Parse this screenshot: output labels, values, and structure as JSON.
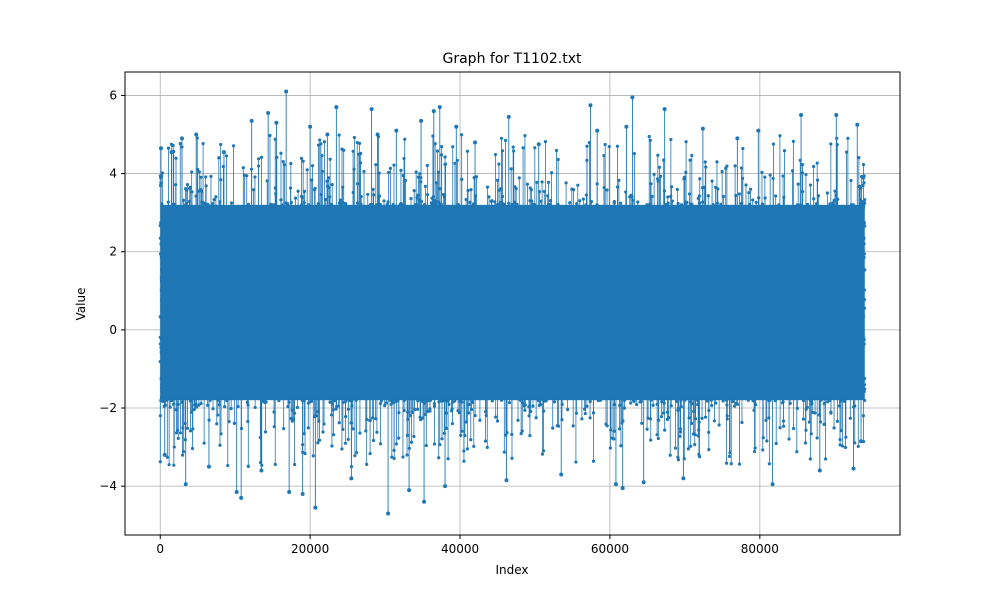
{
  "chart_data": {
    "type": "line",
    "title": "Graph for T1102.txt",
    "xlabel": "Index",
    "ylabel": "Value",
    "xlim": [
      -4700,
      98700
    ],
    "ylim": [
      -5.25,
      6.6
    ],
    "x_ticks": [
      0,
      20000,
      40000,
      60000,
      80000
    ],
    "x_tick_labels": [
      "0",
      "20000",
      "40000",
      "60000",
      "80000"
    ],
    "y_ticks": [
      -4,
      -2,
      0,
      2,
      4,
      6
    ],
    "y_tick_labels": [
      "−4",
      "−2",
      "0",
      "2",
      "4",
      "6"
    ],
    "grid": true,
    "marker": "circle",
    "series": [
      {
        "color": "#1f77b4",
        "n_points": 94000,
        "dense_band": [
          -1.8,
          3.2
        ],
        "outliers": [
          {
            "x": 100,
            "y": 4.65
          },
          {
            "x": 600,
            "y": -3.2
          },
          {
            "x": 1500,
            "y": 4.55
          },
          {
            "x": 2900,
            "y": 4.9
          },
          {
            "x": 3400,
            "y": -3.95
          },
          {
            "x": 4800,
            "y": 5.0
          },
          {
            "x": 6500,
            "y": -3.5
          },
          {
            "x": 8500,
            "y": 4.55
          },
          {
            "x": 10200,
            "y": -4.15
          },
          {
            "x": 10800,
            "y": -4.3
          },
          {
            "x": 12200,
            "y": 5.35
          },
          {
            "x": 13500,
            "y": -3.6
          },
          {
            "x": 14400,
            "y": 5.55
          },
          {
            "x": 15500,
            "y": 5.3
          },
          {
            "x": 16800,
            "y": 6.1
          },
          {
            "x": 17200,
            "y": -4.15
          },
          {
            "x": 19000,
            "y": -4.2
          },
          {
            "x": 20000,
            "y": 5.2
          },
          {
            "x": 20700,
            "y": -4.55
          },
          {
            "x": 22300,
            "y": 5.0
          },
          {
            "x": 23500,
            "y": 5.7
          },
          {
            "x": 25500,
            "y": -3.8
          },
          {
            "x": 28200,
            "y": 5.65
          },
          {
            "x": 29000,
            "y": 5.0
          },
          {
            "x": 30400,
            "y": -4.7
          },
          {
            "x": 31500,
            "y": 5.1
          },
          {
            "x": 33200,
            "y": -4.1
          },
          {
            "x": 34800,
            "y": 5.35
          },
          {
            "x": 35200,
            "y": -4.4
          },
          {
            "x": 36500,
            "y": 5.6
          },
          {
            "x": 37300,
            "y": 5.7
          },
          {
            "x": 38000,
            "y": -4.0
          },
          {
            "x": 39500,
            "y": 5.2
          },
          {
            "x": 42000,
            "y": 4.8
          },
          {
            "x": 46500,
            "y": 5.45
          },
          {
            "x": 46200,
            "y": -3.85
          },
          {
            "x": 50500,
            "y": 4.75
          },
          {
            "x": 53500,
            "y": -3.7
          },
          {
            "x": 57400,
            "y": 5.75
          },
          {
            "x": 58300,
            "y": 5.1
          },
          {
            "x": 60800,
            "y": -3.95
          },
          {
            "x": 61700,
            "y": -4.05
          },
          {
            "x": 62200,
            "y": 5.2
          },
          {
            "x": 63000,
            "y": 5.95
          },
          {
            "x": 64500,
            "y": -3.9
          },
          {
            "x": 67300,
            "y": 5.65
          },
          {
            "x": 69800,
            "y": -3.8
          },
          {
            "x": 72400,
            "y": 5.15
          },
          {
            "x": 77000,
            "y": 4.9
          },
          {
            "x": 79800,
            "y": 5.1
          },
          {
            "x": 81700,
            "y": -3.95
          },
          {
            "x": 85500,
            "y": 5.5
          },
          {
            "x": 88000,
            "y": -3.6
          },
          {
            "x": 90200,
            "y": 5.5
          },
          {
            "x": 92500,
            "y": -3.55
          },
          {
            "x": 93000,
            "y": 5.25
          },
          {
            "x": 93500,
            "y": -2.85
          }
        ]
      }
    ]
  }
}
